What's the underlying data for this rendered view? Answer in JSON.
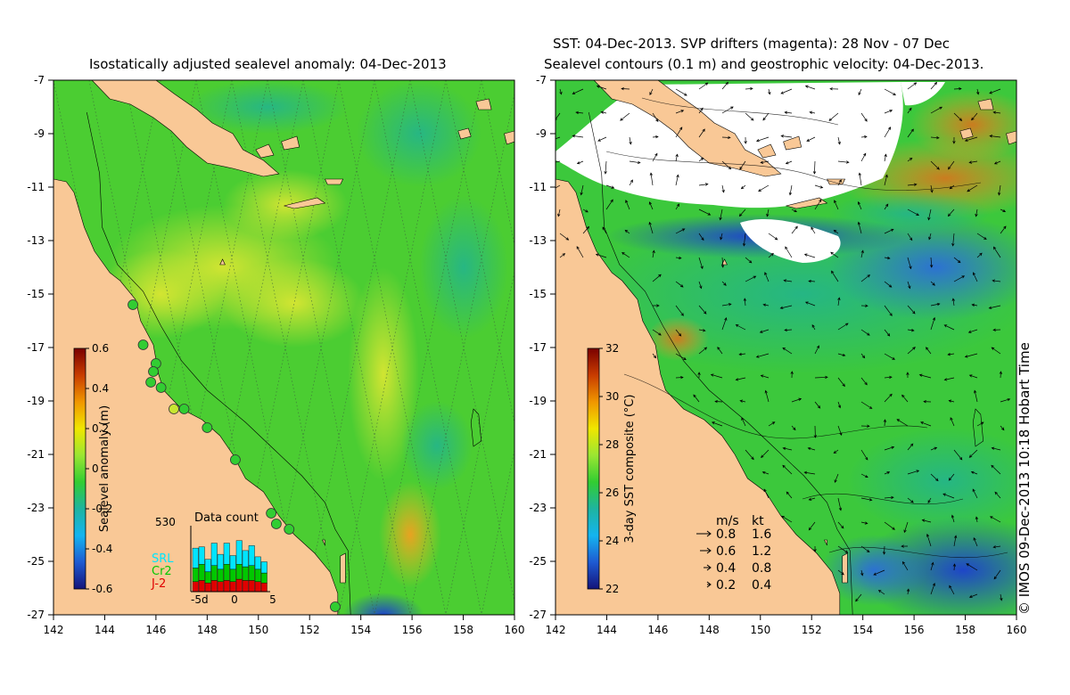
{
  "left_map": {
    "title": "Isostatically adjusted sealevel anomaly: 04-Dec-2013",
    "x_ticks": [
      "142",
      "144",
      "146",
      "148",
      "150",
      "152",
      "154",
      "156",
      "158",
      "160"
    ],
    "y_ticks": [
      "-7",
      "-9",
      "-11",
      "-13",
      "-15",
      "-17",
      "-19",
      "-21",
      "-23",
      "-25",
      "-27"
    ],
    "lon_range": [
      142,
      160
    ],
    "lat_range": [
      -27,
      -7
    ],
    "colorbar": {
      "label": "Sealevel anomaly (m)",
      "range": [
        -0.6,
        0.6
      ],
      "ticks": [
        "0.6",
        "0.4",
        "0.2",
        "0",
        "-0.2",
        "-0.4",
        "-0.6"
      ],
      "colors": [
        "#7a0000",
        "#c83c00",
        "#f09600",
        "#f0e600",
        "#9be632",
        "#32cd32",
        "#1eb4a0",
        "#14b4f0",
        "#1e5ad2",
        "#14147a"
      ]
    },
    "data_count": {
      "title": "Data count",
      "max_label": "530",
      "max_value": 530,
      "x_labels": [
        "-5d",
        "0",
        "5"
      ],
      "legend": [
        {
          "name": "SRL",
          "color": "#00e5ff"
        },
        {
          "name": "Cr2",
          "color": "#00c800"
        },
        {
          "name": "J-2",
          "color": "#e00000"
        }
      ],
      "bars": [
        {
          "srl": 160,
          "cr2": 110,
          "j2": 80
        },
        {
          "srl": 140,
          "cr2": 130,
          "j2": 90
        },
        {
          "srl": 100,
          "cr2": 90,
          "j2": 70
        },
        {
          "srl": 180,
          "cr2": 120,
          "j2": 90
        },
        {
          "srl": 120,
          "cr2": 100,
          "j2": 80
        },
        {
          "srl": 170,
          "cr2": 130,
          "j2": 90
        },
        {
          "srl": 110,
          "cr2": 100,
          "j2": 80
        },
        {
          "srl": 190,
          "cr2": 120,
          "j2": 100
        },
        {
          "srl": 130,
          "cr2": 110,
          "j2": 90
        },
        {
          "srl": 160,
          "cr2": 120,
          "j2": 90
        },
        {
          "srl": 100,
          "cr2": 100,
          "j2": 80
        },
        {
          "srl": 90,
          "cr2": 80,
          "j2": 70
        }
      ]
    },
    "tide_gauges": [
      {
        "lon": 145.1,
        "lat": -15.4,
        "color": "#32cd32"
      },
      {
        "lon": 145.5,
        "lat": -16.9,
        "color": "#32cd32"
      },
      {
        "lon": 146.0,
        "lat": -17.6,
        "color": "#32cd32"
      },
      {
        "lon": 145.9,
        "lat": -17.9,
        "color": "#32cd32"
      },
      {
        "lon": 145.8,
        "lat": -18.3,
        "color": "#32cd32"
      },
      {
        "lon": 146.2,
        "lat": -18.5,
        "color": "#32cd32"
      },
      {
        "lon": 146.7,
        "lat": -19.3,
        "color": "#c8e632"
      },
      {
        "lon": 147.1,
        "lat": -19.3,
        "color": "#32cd32"
      },
      {
        "lon": 148.0,
        "lat": -20.0,
        "color": "#32cd32"
      },
      {
        "lon": 149.1,
        "lat": -21.2,
        "color": "#32cd32"
      },
      {
        "lon": 150.5,
        "lat": -23.2,
        "color": "#32cd32"
      },
      {
        "lon": 150.7,
        "lat": -23.6,
        "color": "#32cd32"
      },
      {
        "lon": 151.2,
        "lat": -23.8,
        "color": "#32cd32"
      },
      {
        "lon": 153.0,
        "lat": -26.7,
        "color": "#32cd32"
      }
    ]
  },
  "right_map": {
    "title_line1": "SST: 04-Dec-2013. SVP drifters (magenta): 28 Nov - 07 Dec",
    "title_line2": "Sealevel contours (0.1 m) and geostrophic velocity: 04-Dec-2013.",
    "x_ticks": [
      "142",
      "144",
      "146",
      "148",
      "150",
      "152",
      "154",
      "156",
      "158",
      "160"
    ],
    "y_ticks": [
      "-7",
      "-9",
      "-11",
      "-13",
      "-15",
      "-17",
      "-19",
      "-21",
      "-23",
      "-25",
      "-27"
    ],
    "colorbar": {
      "label": "3-day SST composite (°C)",
      "range": [
        22,
        33
      ],
      "ticks": [
        "32",
        "30",
        "28",
        "26",
        "24",
        "22"
      ],
      "colors": [
        "#7a0000",
        "#c83c00",
        "#f09600",
        "#f0e600",
        "#9be632",
        "#32cd32",
        "#1eb4a0",
        "#14b4f0",
        "#1e5ad2",
        "#14147a"
      ]
    },
    "velocity_legend": {
      "header_ms": "m/s",
      "header_kt": "kt",
      "rows": [
        {
          "ms": "0.8",
          "kt": "1.6"
        },
        {
          "ms": "0.6",
          "kt": "1.2"
        },
        {
          "ms": "0.4",
          "kt": "0.8"
        },
        {
          "ms": "0.2",
          "kt": "0.4"
        }
      ]
    }
  },
  "credit": "© IMOS 09-Dec-2013 10:18 Hobart Time",
  "colors": {
    "land": "#f9c896",
    "cloud": "#ffffff"
  }
}
